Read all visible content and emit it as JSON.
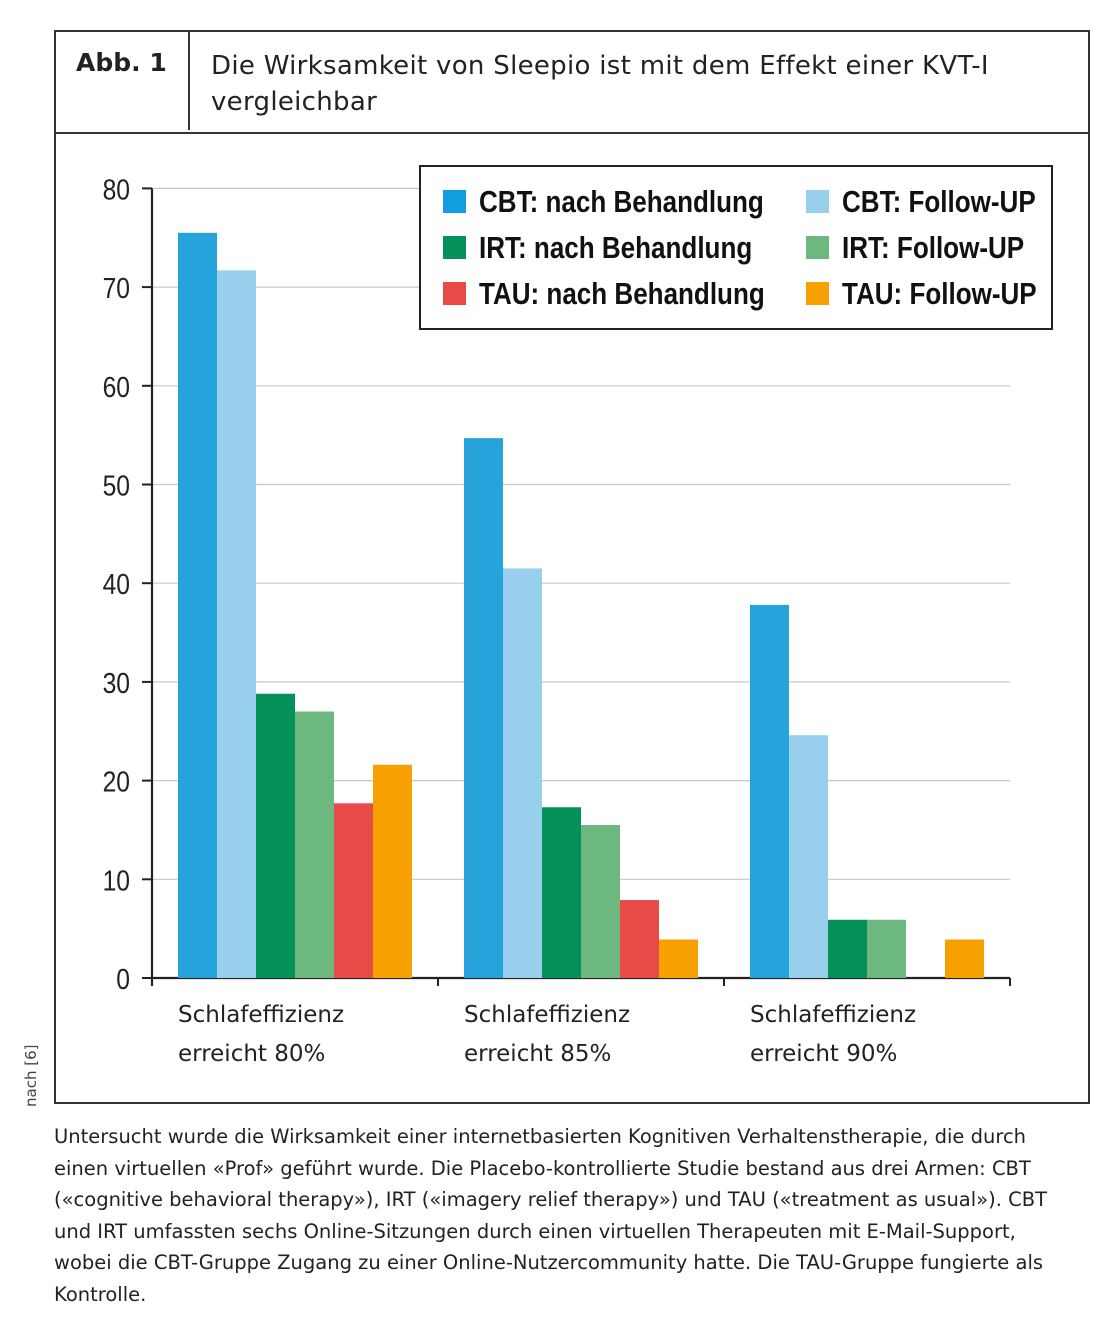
{
  "figure": {
    "label": "Abb. 1",
    "title": "Die Wirksamkeit von Sleepio ist mit dem Effekt einer KVT-I vergleichbar",
    "source_note": "nach [6]",
    "caption": "Untersucht wurde die Wirksamkeit einer internetbasierten Kognitiven Verhaltenstherapie, die durch einen virtuellen «Prof» geführt wurde. Die Placebo-kontrollierte Studie bestand aus drei Armen: CBT («cognitive behavioral therapy»), IRT («imagery relief therapy») und TAU («treatment as usual»). CBT und IRT umfassten sechs Online-Sitzungen durch einen virtuellen Therapeuten mit E-Mail-Support, wobei die CBT-Gruppe Zugang zu einer Online-Nutzercommunity hatte. Die TAU-Gruppe fungierte als Kontrolle."
  },
  "chart_data": {
    "type": "bar",
    "categories": [
      [
        "Schlafeffizienz",
        "erreicht 80%"
      ],
      [
        "Schlafeffizienz",
        "erreicht 85%"
      ],
      [
        "Schlafeffizienz",
        "erreicht 90%"
      ]
    ],
    "ylim": [
      0,
      80
    ],
    "yticks": [
      0,
      10,
      20,
      30,
      40,
      50,
      60,
      70,
      80
    ],
    "grid": true,
    "legend_position": "top-right",
    "series": [
      {
        "name": "CBT: nach Behandlung",
        "color": "#27a3dc",
        "legend_color": "#0f9ee0",
        "values": [
          75.5,
          54.7,
          37.8
        ]
      },
      {
        "name": "CBT: Follow-UP",
        "color": "#97cfec",
        "legend_color": "#97cfec",
        "values": [
          71.7,
          41.5,
          24.6
        ]
      },
      {
        "name": "IRT:   nach Behandlung",
        "color": "#05915a",
        "legend_color": "#05915a",
        "values": [
          28.8,
          17.3,
          5.9
        ]
      },
      {
        "name": "IRT:   Follow-UP",
        "color": "#6cb87f",
        "legend_color": "#6cb87f",
        "values": [
          27.0,
          15.5,
          5.9
        ]
      },
      {
        "name": "TAU: nach Behandlung",
        "color": "#e84a47",
        "legend_color": "#e84a47",
        "values": [
          17.7,
          7.9,
          0
        ]
      },
      {
        "name": "TAU: Follow-UP",
        "color": "#f7a001",
        "legend_color": "#f7a001",
        "values": [
          21.6,
          3.9,
          3.9
        ]
      }
    ],
    "legend_order": [
      0,
      1,
      2,
      3,
      4,
      5
    ]
  }
}
